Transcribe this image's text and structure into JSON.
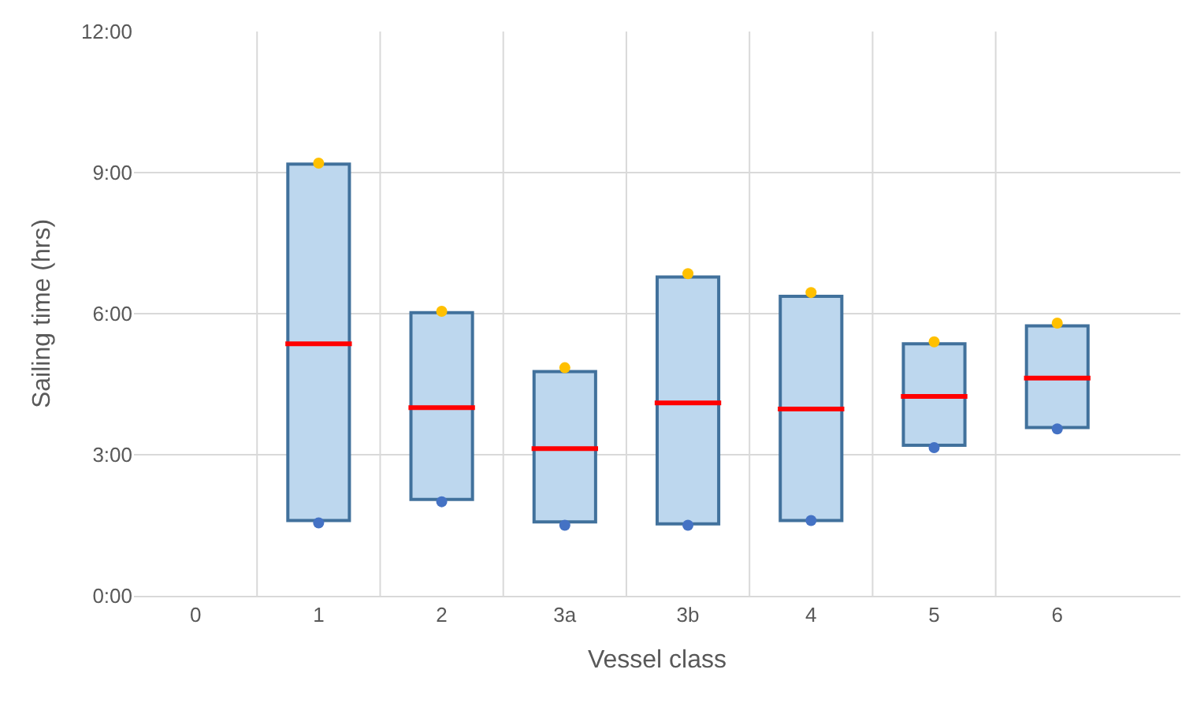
{
  "chart_data": {
    "type": "box",
    "xlabel": "Vessel class",
    "ylabel": "Sailing time (hrs)",
    "categories": [
      "0",
      "1",
      "2",
      "3a",
      "3b",
      "4",
      "5",
      "6"
    ],
    "boxes": [
      null,
      {
        "low": 1.6,
        "q1": 1.6,
        "median": 5.36,
        "q3": 9.18,
        "high": 9.18
      },
      {
        "low": 2.05,
        "q1": 2.05,
        "median": 4.0,
        "q3": 6.02,
        "high": 6.02
      },
      {
        "low": 1.57,
        "q1": 1.57,
        "median": 3.13,
        "q3": 4.77,
        "high": 4.77
      },
      {
        "low": 1.53,
        "q1": 1.53,
        "median": 4.1,
        "q3": 6.78,
        "high": 6.78
      },
      {
        "low": 1.6,
        "q1": 1.6,
        "median": 3.97,
        "q3": 6.37,
        "high": 6.37
      },
      {
        "low": 3.2,
        "q1": 3.2,
        "median": 4.24,
        "q3": 5.36,
        "high": 5.36
      },
      {
        "low": 3.58,
        "q1": 3.58,
        "median": 4.63,
        "q3": 5.74,
        "high": 5.74
      }
    ],
    "color": "#bdd7ee",
    "series": [
      {
        "type": "scatter",
        "color": "#ffc000",
        "x": [
          "1",
          "2",
          "3a",
          "3b",
          "4",
          "5",
          "6"
        ],
        "values": [
          9.2,
          6.05,
          4.85,
          6.85,
          6.45,
          5.4,
          5.8
        ]
      },
      {
        "type": "scatter",
        "color": "#4472c4",
        "x": [
          "1",
          "2",
          "3a",
          "3b",
          "4",
          "5",
          "6"
        ],
        "values": [
          1.55,
          2.0,
          1.5,
          1.5,
          1.6,
          3.15,
          3.55
        ]
      }
    ],
    "ylim": [
      0,
      12
    ],
    "yticks": [
      {
        "value": 0,
        "label": "0:00"
      },
      {
        "value": 3,
        "label": "3:00"
      },
      {
        "value": 6,
        "label": "6:00"
      },
      {
        "value": 9,
        "label": "9:00"
      },
      {
        "value": 12,
        "label": "12:00"
      }
    ],
    "grid": true,
    "marker": "circle"
  }
}
